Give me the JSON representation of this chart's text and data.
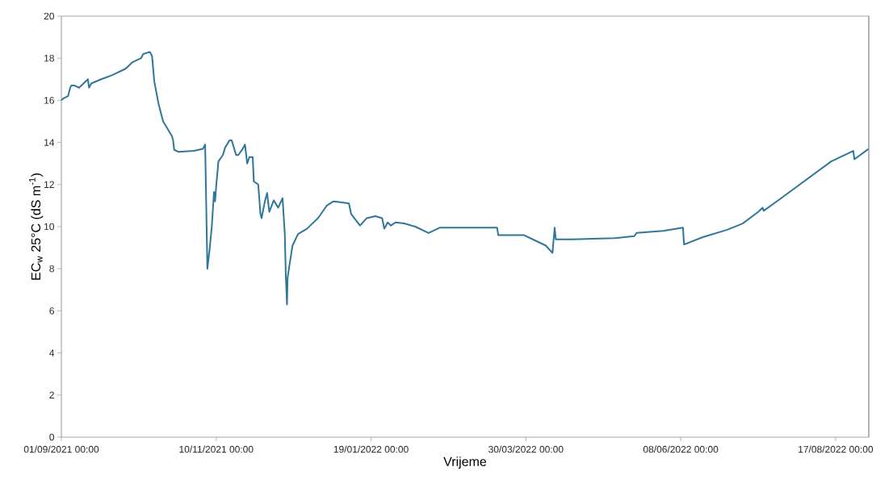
{
  "chart_data": {
    "type": "line",
    "xlabel": "Vrijeme",
    "ylabel": "EC$_{w}$ 25°C (dS m$^{-1}$)",
    "xlim": [
      "2021-09-01",
      "2022-09-01"
    ],
    "ylim": [
      0,
      20
    ],
    "xticks": [
      {
        "value": "2021-09-01",
        "label": "01/09/2021 00:00"
      },
      {
        "value": "2021-11-10",
        "label": "10/11/2021 00:00"
      },
      {
        "value": "2022-01-19",
        "label": "19/01/2022 00:00"
      },
      {
        "value": "2022-03-30",
        "label": "30/03/2022 00:00"
      },
      {
        "value": "2022-06-08",
        "label": "08/06/2022 00:00"
      },
      {
        "value": "2022-08-17",
        "label": "17/08/2022 00:00"
      }
    ],
    "yticks": [
      0,
      2,
      4,
      6,
      8,
      10,
      12,
      14,
      16,
      18,
      20
    ],
    "series": [
      {
        "color": "#2e7799",
        "x": [
          "2021-09-01",
          "2021-09-02",
          "2021-09-04",
          "2021-09-05",
          "2021-09-05T12:00",
          "2021-09-07",
          "2021-09-09",
          "2021-09-11",
          "2021-09-13",
          "2021-09-13T12:00",
          "2021-09-14T12:00",
          "2021-09-19",
          "2021-09-24",
          "2021-09-30",
          "2021-10-03",
          "2021-10-07",
          "2021-10-08",
          "2021-10-11",
          "2021-10-12",
          "2021-10-13",
          "2021-10-15",
          "2021-10-17",
          "2021-10-21",
          "2021-10-21T12:00",
          "2021-10-22",
          "2021-10-24",
          "2021-10-31",
          "2021-11-04",
          "2021-11-05",
          "2021-11-06",
          "2021-11-07",
          "2021-11-08",
          "2021-11-09",
          "2021-11-09T12:00",
          "2021-11-10",
          "2021-11-11",
          "2021-11-13",
          "2021-11-14",
          "2021-11-16",
          "2021-11-17",
          "2021-11-19",
          "2021-11-20",
          "2021-11-22",
          "2021-11-23",
          "2021-11-24",
          "2021-11-25",
          "2021-11-26T12:00",
          "2021-11-27",
          "2021-11-29",
          "2021-11-30",
          "2021-11-30T12:00",
          "2021-12-02",
          "2021-12-03",
          "2021-12-04",
          "2021-12-06",
          "2021-12-08",
          "2021-12-10",
          "2021-12-11",
          "2021-12-11T12:00",
          "2021-12-12",
          "2021-12-12T06:00",
          "2021-12-13",
          "2021-12-14T12:00",
          "2021-12-17",
          "2021-12-21",
          "2021-12-23",
          "2021-12-26",
          "2021-12-28",
          "2021-12-30",
          "2022-01-02",
          "2022-01-06",
          "2022-01-09",
          "2022-01-10",
          "2022-01-14",
          "2022-01-17",
          "2022-01-21",
          "2022-01-24",
          "2022-01-25",
          "2022-01-26T12:00",
          "2022-01-28",
          "2022-01-30",
          "2022-02-03",
          "2022-02-08",
          "2022-02-14",
          "2022-02-19",
          "2022-02-23",
          "2022-03-17",
          "2022-03-17T12:00",
          "2022-03-29",
          "2022-04-04",
          "2022-04-08",
          "2022-04-11",
          "2022-04-12",
          "2022-04-12T12:00",
          "2022-04-20",
          "2022-05-09",
          "2022-05-18",
          "2022-05-19",
          "2022-05-31",
          "2022-06-09",
          "2022-06-09T12:00",
          "2022-06-18",
          "2022-06-29",
          "2022-07-06",
          "2022-07-13",
          "2022-07-15",
          "2022-07-15T12:00",
          "2022-07-24",
          "2022-08-04",
          "2022-08-15",
          "2022-08-25",
          "2022-08-25T12:00",
          "2022-09-01"
        ],
        "values": [
          16.0,
          16.1,
          16.2,
          16.6,
          16.7,
          16.7,
          16.6,
          16.8,
          17.0,
          16.6,
          16.8,
          17.0,
          17.2,
          17.5,
          17.8,
          18.0,
          18.2,
          18.3,
          18.1,
          16.9,
          15.8,
          15.0,
          14.3,
          14.1,
          13.65,
          13.55,
          13.6,
          13.7,
          13.9,
          8.0,
          8.9,
          10.0,
          11.65,
          11.2,
          11.95,
          13.1,
          13.4,
          13.75,
          14.1,
          14.1,
          13.4,
          13.4,
          13.7,
          13.9,
          13.0,
          13.3,
          13.3,
          12.15,
          12.0,
          10.6,
          10.4,
          11.2,
          11.6,
          10.7,
          11.25,
          10.9,
          11.35,
          9.65,
          7.55,
          6.3,
          7.55,
          8.1,
          9.1,
          9.65,
          9.9,
          10.1,
          10.4,
          10.7,
          11.0,
          11.2,
          11.15,
          11.1,
          10.6,
          10.05,
          10.4,
          10.5,
          10.4,
          9.9,
          10.2,
          10.05,
          10.2,
          10.15,
          10.0,
          9.7,
          9.95,
          9.95,
          9.95,
          9.6,
          9.6,
          9.3,
          9.1,
          8.75,
          9.95,
          9.4,
          9.4,
          9.45,
          9.55,
          9.7,
          9.8,
          9.95,
          9.15,
          9.5,
          9.85,
          10.15,
          10.7,
          10.9,
          10.75,
          11.4,
          12.25,
          13.1,
          13.6,
          13.2,
          13.7
        ]
      }
    ]
  }
}
